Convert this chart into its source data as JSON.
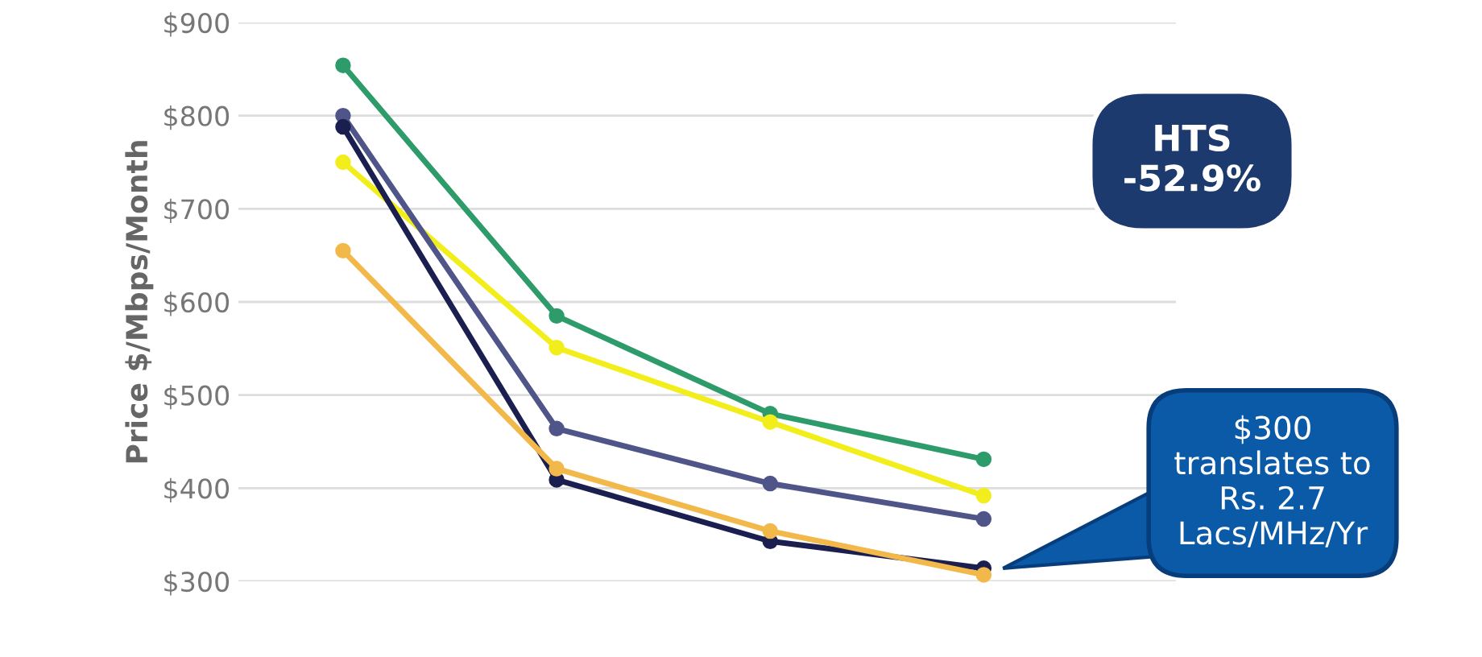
{
  "chart_data": {
    "type": "line",
    "ylabel": "Price $/Mbps/Month",
    "categories": [
      null,
      null,
      null,
      null
    ],
    "series": [
      {
        "color": "#2e9b6a",
        "values": [
          854,
          585,
          480,
          431
        ]
      },
      {
        "color": "#f2ee1c",
        "values": [
          750,
          551,
          471,
          392
        ]
      },
      {
        "color": "#4f5588",
        "values": [
          800,
          464,
          405,
          367
        ]
      },
      {
        "color": "#1b1f4f",
        "values": [
          788,
          409,
          343,
          314
        ]
      },
      {
        "color": "#f2b84a",
        "values": [
          655,
          421,
          354,
          307
        ]
      }
    ],
    "ylim": [
      300,
      900
    ],
    "yticks": [
      {
        "value": 300,
        "label": "$300"
      },
      {
        "value": 400,
        "label": "$400"
      },
      {
        "value": 500,
        "label": "$500"
      },
      {
        "value": 600,
        "label": "$600"
      },
      {
        "value": 700,
        "label": "$700"
      },
      {
        "value": 800,
        "label": "$800"
      },
      {
        "value": 900,
        "label": "$900"
      }
    ],
    "grid": "y",
    "marker": "circle",
    "line_style": "solid",
    "tick_labels": "y",
    "annotations": [
      "HTS\n-52.9%",
      "$300\ntranslates to\nRs. 2.7\nLacs/MHz/Yr"
    ]
  }
}
